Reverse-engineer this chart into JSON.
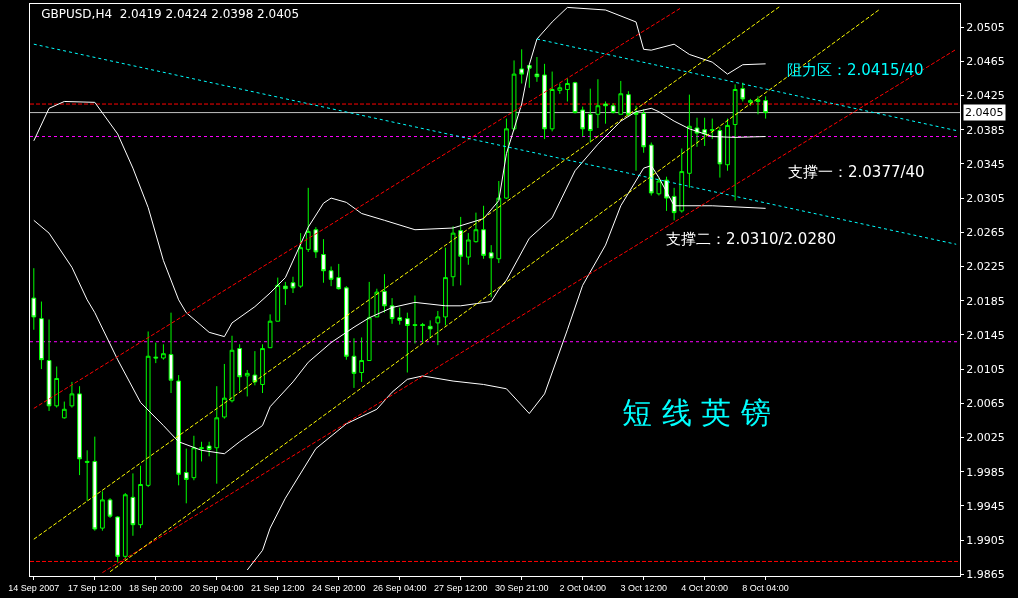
{
  "chart_data": {
    "type": "candlestick",
    "title": "GBPUSD,H4  2.0419 2.0424 2.0398 2.0405",
    "categories": [
      "14 Sep 2007",
      null,
      null,
      null,
      null,
      null,
      null,
      null,
      "17 Sep 12:00",
      null,
      null,
      null,
      null,
      null,
      null,
      null,
      "18 Sep 20:00",
      null,
      null,
      null,
      null,
      null,
      null,
      null,
      "20 Sep 04:00",
      null,
      null,
      null,
      null,
      null,
      null,
      null,
      "21 Sep 12:00",
      null,
      null,
      null,
      null,
      null,
      null,
      null,
      "24 Sep 20:00",
      null,
      null,
      null,
      null,
      null,
      null,
      null,
      "26 Sep 04:00",
      null,
      null,
      null,
      null,
      null,
      null,
      null,
      "27 Sep 12:00",
      null,
      null,
      null,
      null,
      null,
      null,
      null,
      "30 Sep 21:00",
      null,
      null,
      null,
      null,
      null,
      null,
      null,
      "2 Oct 04:00",
      null,
      null,
      null,
      null,
      null,
      null,
      null,
      "3 Oct 12:00",
      null,
      null,
      null,
      null,
      null,
      null,
      null,
      "4 Oct 20:00",
      null,
      null,
      null,
      null,
      null,
      null,
      null,
      "8 Oct 04:00",
      null,
      null,
      null,
      null,
      null,
      null,
      null,
      null,
      null,
      null,
      null,
      null,
      null,
      null,
      null,
      null,
      null,
      null,
      null,
      null,
      null,
      null,
      null,
      null,
      null
    ],
    "ohlc": [
      [
        2.0188,
        2.0223,
        2.0151,
        2.0166
      ],
      [
        2.0164,
        2.0184,
        2.0105,
        2.0116
      ],
      [
        2.0115,
        2.0163,
        2.0056,
        2.0062
      ],
      [
        2.0062,
        2.0108,
        2.006,
        2.0094
      ],
      [
        2.0048,
        2.0067,
        2.0047,
        2.0058
      ],
      [
        2.0062,
        2.009,
        2.006,
        2.0076
      ],
      [
        2.0076,
        2.0085,
        1.9981,
        2.0
      ],
      [
        1.9997,
        2.001,
        1.9951,
        1.9996
      ],
      [
        1.9997,
        2.0026,
        1.9916,
        1.9918
      ],
      [
        1.9919,
        1.9962,
        1.9916,
        1.9952
      ],
      [
        1.9952,
        1.9954,
        1.9931,
        1.9933
      ],
      [
        1.9932,
        1.9933,
        1.9879,
        1.9886
      ],
      [
        1.9886,
        1.996,
        1.9882,
        1.9958
      ],
      [
        1.9955,
        1.9983,
        1.991,
        1.9923
      ],
      [
        1.9923,
        1.9992,
        1.9919,
        1.997
      ],
      [
        1.9969,
        2.0149,
        1.9967,
        2.012
      ],
      [
        2.0119,
        2.0136,
        2.0112,
        2.0118
      ],
      [
        2.0118,
        2.0134,
        2.0116,
        2.0123
      ],
      [
        2.0122,
        2.0171,
        2.0077,
        2.0092
      ],
      [
        2.0091,
        2.0098,
        1.9969,
        1.9982
      ],
      [
        1.9984,
        2.0012,
        1.9948,
        1.9976
      ],
      [
        1.9978,
        2.0027,
        1.9975,
        2.0013
      ],
      [
        2.0012,
        2.002,
        1.9997,
        2.0013
      ],
      [
        2.0015,
        2.002,
        2.0003,
        2.0011
      ],
      [
        2.0013,
        2.0085,
        1.9971,
        2.0048
      ],
      [
        2.0049,
        2.0111,
        2.0047,
        2.0071
      ],
      [
        2.0068,
        2.0144,
        2.0066,
        2.0127
      ],
      [
        2.0129,
        2.0134,
        2.0079,
        2.0096
      ],
      [
        2.0097,
        2.0104,
        2.0073,
        2.01
      ],
      [
        2.0098,
        2.0126,
        2.0086,
        2.009
      ],
      [
        2.0087,
        2.0134,
        2.0077,
        2.0129
      ],
      [
        2.013,
        2.0169,
        2.013,
        2.0161
      ],
      [
        2.0161,
        2.0212,
        2.0161,
        2.0203
      ],
      [
        2.0202,
        2.0207,
        2.018,
        2.0199
      ],
      [
        2.0206,
        2.0213,
        2.0194,
        2.02
      ],
      [
        2.0202,
        2.0264,
        2.02,
        2.0247
      ],
      [
        2.0245,
        2.0317,
        2.0242,
        2.0266
      ],
      [
        2.0268,
        2.0271,
        2.0235,
        2.0242
      ],
      [
        2.0239,
        2.0257,
        2.0206,
        2.022
      ],
      [
        2.022,
        2.0225,
        2.0202,
        2.021
      ],
      [
        2.0212,
        2.0228,
        2.0198,
        2.0199
      ],
      [
        2.02,
        2.0202,
        2.0116,
        2.012
      ],
      [
        2.012,
        2.0141,
        2.0083,
        2.01
      ],
      [
        2.0101,
        2.0142,
        2.009,
        2.0115
      ],
      [
        2.0115,
        2.0207,
        2.0115,
        2.0165
      ],
      [
        2.0166,
        2.0199,
        2.0166,
        2.0195
      ],
      [
        2.0196,
        2.0216,
        2.0171,
        2.0179
      ],
      [
        2.0179,
        2.0188,
        2.0158,
        2.0164
      ],
      [
        2.0165,
        2.0177,
        2.0157,
        2.0162
      ],
      [
        2.0164,
        2.0171,
        2.0101,
        2.0156
      ],
      [
        2.0157,
        2.0191,
        2.0135,
        2.0156
      ],
      [
        2.0157,
        2.0159,
        2.0136,
        2.0156
      ],
      [
        2.0155,
        2.0162,
        2.0141,
        2.0152
      ],
      [
        2.0159,
        2.0173,
        2.0133,
        2.0166
      ],
      [
        2.0166,
        2.0247,
        2.0156,
        2.0212
      ],
      [
        2.0213,
        2.0272,
        2.0202,
        2.0264
      ],
      [
        2.0267,
        2.0283,
        2.0203,
        2.0237
      ],
      [
        2.0236,
        2.0264,
        2.0227,
        2.0256
      ],
      [
        2.0254,
        2.0288,
        2.0253,
        2.0268
      ],
      [
        2.0268,
        2.0296,
        2.0234,
        2.0238
      ],
      [
        2.0241,
        2.025,
        2.0189,
        2.0235
      ],
      [
        2.0234,
        2.0325,
        2.0229,
        2.0305
      ],
      [
        2.0305,
        2.0398,
        2.0304,
        2.0386
      ],
      [
        2.0386,
        2.0466,
        2.0384,
        2.045
      ],
      [
        2.0456,
        2.0479,
        2.0439,
        2.045
      ],
      [
        2.046,
        2.0461,
        2.0434,
        2.0457
      ],
      [
        2.045,
        2.047,
        2.0441,
        2.0447
      ],
      [
        2.0449,
        2.0462,
        2.0374,
        2.0386
      ],
      [
        2.0386,
        2.0453,
        2.0383,
        2.0432
      ],
      [
        2.0431,
        2.0439,
        2.0427,
        2.0434
      ],
      [
        2.0432,
        2.0445,
        2.0418,
        2.0439
      ],
      [
        2.044,
        2.0441,
        2.0404,
        2.0405
      ],
      [
        2.0408,
        2.0412,
        2.0377,
        2.0386
      ],
      [
        2.0403,
        2.0433,
        2.037,
        2.0384
      ],
      [
        2.0403,
        2.0444,
        2.0387,
        2.0413
      ],
      [
        2.0415,
        2.0418,
        2.0392,
        2.0413
      ],
      [
        2.0413,
        2.0416,
        2.0404,
        2.0405
      ],
      [
        2.0403,
        2.0442,
        2.0403,
        2.0427
      ],
      [
        2.0426,
        2.043,
        2.0401,
        2.0403
      ],
      [
        2.0405,
        2.0413,
        2.0337,
        2.0403
      ],
      [
        2.0404,
        2.0409,
        2.0358,
        2.0365
      ],
      [
        2.0367,
        2.037,
        2.0308,
        2.0311
      ],
      [
        2.031,
        2.0329,
        2.0308,
        2.0325
      ],
      [
        2.0326,
        2.033,
        2.029,
        2.0305
      ],
      [
        2.0307,
        2.0317,
        2.0279,
        2.0288
      ],
      [
        2.029,
        2.0363,
        2.0288,
        2.0336
      ],
      [
        2.0334,
        2.0426,
        2.0317,
        2.0389
      ],
      [
        2.0387,
        2.0399,
        2.0365,
        2.0381
      ],
      [
        2.0385,
        2.0399,
        2.0366,
        2.038
      ],
      [
        2.0384,
        2.0398,
        2.0374,
        2.0385
      ],
      [
        2.0384,
        2.0388,
        2.0329,
        2.0345
      ],
      [
        2.0344,
        2.0398,
        2.0337,
        2.039
      ],
      [
        2.0391,
        2.0438,
        2.0302,
        2.0432
      ],
      [
        2.0433,
        2.044,
        2.0418,
        2.0421
      ],
      [
        2.0417,
        2.0421,
        2.0413,
        2.0419
      ],
      [
        2.0418,
        2.0424,
        2.0403,
        2.042
      ],
      [
        2.0419,
        2.0424,
        2.0398,
        2.0405
      ],
      null,
      null,
      null,
      null,
      null,
      null,
      null,
      null,
      null,
      null,
      null,
      null,
      null,
      null,
      null,
      null,
      null,
      null,
      null,
      null,
      null,
      null,
      null,
      null,
      null
    ],
    "color": "#00ff00",
    "series": [
      {
        "type": "line",
        "color": "#ffffff",
        "line_style": "solid",
        "values": [
          2.0372,
          null,
          2.041,
          null,
          2.0418,
          null,
          null,
          null,
          2.0417,
          null,
          null,
          2.038,
          null,
          2.034,
          null,
          2.0294,
          null,
          2.0232,
          null,
          2.0186,
          2.0171,
          null,
          null,
          2.0148,
          null,
          2.0143,
          2.0159,
          null,
          null,
          2.0178,
          null,
          2.0194,
          null,
          2.0212,
          null,
          null,
          2.0271,
          null,
          2.0299,
          2.0305,
          null,
          2.03,
          null,
          2.0287,
          null,
          null,
          2.0279,
          null,
          null,
          null,
          2.0268,
          null,
          null,
          null,
          null,
          2.027,
          null,
          null,
          null,
          2.0281,
          null,
          2.0302,
          2.0357,
          null,
          2.0415,
          2.0461,
          2.0491,
          null,
          2.0511,
          null,
          2.0528,
          null,
          null,
          null,
          null,
          2.0525,
          null,
          null,
          null,
          2.0511,
          2.0479,
          2.0478,
          null,
          null,
          2.0485,
          null,
          2.0473,
          null,
          null,
          2.0464,
          null,
          2.045,
          null,
          2.0461,
          null,
          null,
          2.0462,
          null,
          null,
          null,
          null,
          null,
          null,
          null,
          null,
          null,
          null,
          null,
          null,
          null,
          null,
          null,
          null,
          null,
          null,
          null,
          null,
          null,
          null,
          null,
          null,
          null
        ]
      },
      {
        "type": "line",
        "color": "#ffffff",
        "line_style": "solid",
        "values": [
          2.0279,
          null,
          2.0264,
          null,
          null,
          2.0224,
          null,
          2.0186,
          2.0171,
          null,
          null,
          2.0116,
          null,
          null,
          2.0066,
          null,
          null,
          2.0039,
          null,
          2.002,
          null,
          null,
          2.001,
          null,
          null,
          2.0006,
          null,
          2.002,
          null,
          null,
          2.0039,
          2.0061,
          null,
          null,
          2.009,
          null,
          2.0113,
          null,
          null,
          2.0136,
          null,
          null,
          2.0154,
          null,
          2.0165,
          null,
          null,
          2.0177,
          null,
          null,
          2.0183,
          null,
          null,
          null,
          2.0179,
          null,
          2.0179,
          null,
          null,
          null,
          2.0184,
          2.0198,
          2.0209,
          null,
          null,
          2.0258,
          null,
          null,
          2.0282,
          null,
          null,
          2.0337,
          null,
          null,
          2.0368,
          null,
          null,
          2.0395,
          null,
          2.0406,
          null,
          2.041,
          2.0406,
          null,
          2.0395,
          null,
          2.0386,
          null,
          null,
          2.0377,
          null,
          null,
          2.0376,
          null,
          null,
          null,
          2.0377,
          null,
          null,
          null,
          null,
          null,
          null,
          null,
          null,
          null,
          null,
          null,
          null,
          null,
          null,
          null,
          null,
          null,
          null,
          null,
          null,
          null,
          null,
          null,
          null,
          null
        ]
      },
      {
        "type": "line",
        "color": "#ffffff",
        "line_style": "solid",
        "values": [
          null,
          null,
          null,
          null,
          null,
          null,
          null,
          null,
          null,
          null,
          null,
          null,
          null,
          null,
          null,
          null,
          null,
          null,
          null,
          null,
          null,
          null,
          null,
          null,
          null,
          null,
          null,
          null,
          1.987,
          null,
          1.9893,
          1.9919,
          null,
          1.9954,
          null,
          null,
          null,
          2.0012,
          null,
          null,
          null,
          2.0041,
          null,
          null,
          null,
          2.0058,
          null,
          2.0078,
          null,
          2.0093,
          null,
          2.0097,
          null,
          null,
          null,
          2.0091,
          null,
          null,
          null,
          2.0087,
          null,
          null,
          2.0082,
          null,
          null,
          2.0053,
          null,
          2.0076,
          null,
          null,
          2.0151,
          null,
          2.0203,
          null,
          null,
          2.025,
          null,
          2.0296,
          null,
          null,
          2.034,
          2.0343,
          2.0329,
          null,
          2.0296,
          null,
          null,
          null,
          null,
          2.0296,
          null,
          null,
          null,
          null,
          null,
          null,
          2.0293,
          null,
          null,
          null,
          null,
          null,
          null,
          null,
          null,
          null,
          null,
          null,
          null,
          null,
          null,
          null,
          null,
          null,
          null,
          null,
          null,
          null,
          null,
          null,
          null,
          null
        ]
      },
      {
        "type": "line",
        "color": "#ff0000",
        "line_style": "dashed",
        "values": [
          2.0059,
          null,
          null,
          null,
          null,
          null,
          null,
          null,
          null,
          null,
          null,
          null,
          null,
          null,
          null,
          null,
          null,
          null,
          null,
          null,
          null,
          null,
          null,
          null,
          null,
          null,
          null,
          null,
          null,
          null,
          null,
          null,
          null,
          null,
          null,
          null,
          null,
          null,
          null,
          null,
          null,
          null,
          null,
          null,
          null,
          null,
          null,
          null,
          null,
          null,
          null,
          null,
          null,
          null,
          null,
          null,
          null,
          null,
          null,
          null,
          null,
          null,
          null,
          null,
          null,
          null,
          null,
          null,
          null,
          null,
          null,
          null,
          null,
          null,
          null,
          null,
          null,
          null,
          null,
          null,
          null,
          null,
          null,
          null,
          null,
          2.0528,
          null,
          null,
          null,
          null,
          null,
          null,
          null,
          null,
          null,
          null,
          null,
          null,
          null,
          null,
          null,
          null,
          null,
          null,
          null,
          null,
          null,
          null,
          null,
          null,
          null,
          null,
          null,
          null,
          null,
          null,
          null,
          null,
          null,
          null,
          null,
          null
        ]
      },
      {
        "type": "line",
        "color": "#ff0000",
        "line_style": "dashed",
        "values": [
          null,
          null,
          null,
          null,
          null,
          null,
          null,
          null,
          null,
          1.9867,
          null,
          null,
          null,
          null,
          null,
          null,
          null,
          null,
          null,
          null,
          null,
          null,
          null,
          null,
          null,
          null,
          null,
          null,
          null,
          null,
          null,
          null,
          null,
          null,
          null,
          null,
          null,
          null,
          null,
          null,
          null,
          null,
          null,
          null,
          null,
          null,
          null,
          null,
          null,
          null,
          null,
          null,
          null,
          null,
          null,
          null,
          null,
          null,
          null,
          null,
          null,
          null,
          null,
          null,
          null,
          null,
          null,
          null,
          null,
          null,
          null,
          null,
          null,
          null,
          null,
          null,
          null,
          null,
          null,
          null,
          null,
          null,
          null,
          null,
          null,
          null,
          null,
          null,
          null,
          null,
          null,
          null,
          null,
          null,
          null,
          null,
          null,
          null,
          null,
          null,
          null,
          null,
          null,
          null,
          null,
          null,
          null,
          null,
          null,
          null,
          null,
          null,
          null,
          null,
          null,
          null,
          null,
          null,
          null,
          null,
          null,
          2.0479
        ]
      },
      {
        "type": "line",
        "color": "#ffff00",
        "line_style": "dashed",
        "values": [
          1.9906,
          null,
          null,
          null,
          null,
          null,
          null,
          null,
          null,
          null,
          null,
          null,
          null,
          null,
          null,
          null,
          null,
          null,
          null,
          null,
          null,
          null,
          null,
          null,
          null,
          null,
          null,
          null,
          null,
          null,
          null,
          null,
          null,
          null,
          null,
          null,
          null,
          null,
          null,
          null,
          null,
          null,
          null,
          null,
          null,
          null,
          null,
          null,
          null,
          null,
          null,
          null,
          null,
          null,
          null,
          null,
          null,
          null,
          null,
          null,
          null,
          null,
          null,
          null,
          null,
          null,
          null,
          null,
          null,
          null,
          null,
          null,
          null,
          null,
          null,
          null,
          null,
          null,
          null,
          null,
          null,
          null,
          null,
          null,
          null,
          null,
          null,
          null,
          null,
          null,
          null,
          null,
          null,
          null,
          null,
          null,
          null,
          null,
          2.053,
          null,
          null,
          null,
          null,
          null,
          null,
          null,
          null,
          null,
          null,
          null,
          null,
          null,
          null,
          null,
          null,
          null,
          null,
          null,
          null,
          null,
          null,
          null
        ]
      },
      {
        "type": "line",
        "color": "#ffff00",
        "line_style": "dashed",
        "values": [
          null,
          null,
          null,
          null,
          null,
          null,
          null,
          null,
          null,
          null,
          1.9868,
          null,
          null,
          null,
          null,
          null,
          null,
          null,
          null,
          null,
          null,
          null,
          null,
          null,
          null,
          null,
          null,
          null,
          null,
          null,
          null,
          null,
          null,
          null,
          null,
          null,
          null,
          null,
          null,
          null,
          null,
          null,
          null,
          null,
          null,
          null,
          null,
          null,
          null,
          null,
          null,
          null,
          null,
          null,
          null,
          null,
          null,
          null,
          null,
          null,
          null,
          null,
          null,
          null,
          null,
          null,
          null,
          null,
          null,
          null,
          null,
          null,
          null,
          null,
          null,
          null,
          null,
          null,
          null,
          null,
          null,
          null,
          null,
          null,
          null,
          null,
          null,
          null,
          null,
          null,
          null,
          null,
          null,
          null,
          null,
          null,
          null,
          null,
          null,
          null,
          null,
          null,
          null,
          null,
          null,
          null,
          null,
          null,
          null,
          null,
          null,
          2.0526,
          null,
          null,
          null,
          null,
          null,
          null,
          null,
          null,
          null,
          null
        ]
      },
      {
        "type": "line",
        "color": "#00ffff",
        "line_style": "dotted",
        "values": [
          2.0485,
          null,
          null,
          null,
          null,
          null,
          null,
          null,
          null,
          null,
          null,
          null,
          null,
          null,
          null,
          null,
          null,
          null,
          null,
          null,
          null,
          null,
          null,
          null,
          null,
          null,
          null,
          null,
          null,
          null,
          null,
          null,
          null,
          null,
          null,
          null,
          null,
          null,
          null,
          null,
          null,
          null,
          null,
          null,
          null,
          null,
          null,
          null,
          null,
          null,
          null,
          null,
          null,
          null,
          null,
          null,
          null,
          null,
          null,
          null,
          null,
          null,
          null,
          null,
          null,
          null,
          null,
          null,
          null,
          null,
          null,
          null,
          null,
          null,
          null,
          null,
          null,
          null,
          null,
          null,
          null,
          null,
          null,
          null,
          null,
          null,
          null,
          null,
          null,
          null,
          null,
          null,
          null,
          null,
          null,
          null,
          null,
          null,
          null,
          null,
          null,
          null,
          null,
          null,
          null,
          null,
          null,
          null,
          null,
          null,
          null,
          null,
          null,
          null,
          null,
          null,
          null,
          null,
          null,
          null,
          null,
          2.0251
        ]
      },
      {
        "type": "line",
        "color": "#00ffff",
        "line_style": "dotted",
        "values": [
          null,
          null,
          null,
          null,
          null,
          null,
          null,
          null,
          null,
          null,
          null,
          null,
          null,
          null,
          null,
          null,
          null,
          null,
          null,
          null,
          null,
          null,
          null,
          null,
          null,
          null,
          null,
          null,
          null,
          null,
          null,
          null,
          null,
          null,
          null,
          null,
          null,
          null,
          null,
          null,
          null,
          null,
          null,
          null,
          null,
          null,
          null,
          null,
          null,
          null,
          null,
          null,
          null,
          null,
          null,
          null,
          null,
          null,
          null,
          null,
          null,
          null,
          null,
          null,
          null,
          null,
          2.0491,
          null,
          null,
          null,
          null,
          null,
          null,
          null,
          null,
          null,
          null,
          null,
          null,
          null,
          null,
          null,
          null,
          null,
          null,
          null,
          null,
          null,
          null,
          null,
          null,
          null,
          null,
          null,
          null,
          null,
          null,
          null,
          null,
          null,
          null,
          null,
          null,
          null,
          null,
          null,
          null,
          null,
          null,
          null,
          null,
          null,
          null,
          null,
          null,
          null,
          null,
          null,
          null,
          null,
          null,
          2.0384
        ]
      }
    ],
    "ref_lines": [
      {
        "axis": "y",
        "value": 2.0415,
        "color": "#ff0000",
        "line_style": "dashed"
      },
      {
        "axis": "y",
        "value": 2.0405,
        "label": "2.0405",
        "color": "#c0c0c0",
        "line_style": "solid"
      },
      {
        "axis": "y",
        "value": 2.0377,
        "color": "#ff00ff",
        "line_style": "dotted"
      },
      {
        "axis": "y",
        "value": 2.0137,
        "color": "#ff00ff",
        "line_style": "dotted"
      },
      {
        "axis": "y",
        "value": 1.988,
        "color": "#ff0000",
        "line_style": "dashed"
      }
    ],
    "annotations": [
      "阻力区：2.0415/40",
      "支撑一：2.0377/40",
      "支撑二：2.0310/2.0280",
      "短 线 英 镑"
    ],
    "ylim": [
      1.9863,
      2.0532
    ],
    "yticks": [
      1.9865,
      1.9905,
      1.9945,
      1.9985,
      2.0025,
      2.0065,
      2.0105,
      2.0145,
      2.0185,
      2.0225,
      2.0265,
      2.0305,
      2.0345,
      2.0385,
      2.0425,
      2.0465,
      2.0505
    ]
  }
}
